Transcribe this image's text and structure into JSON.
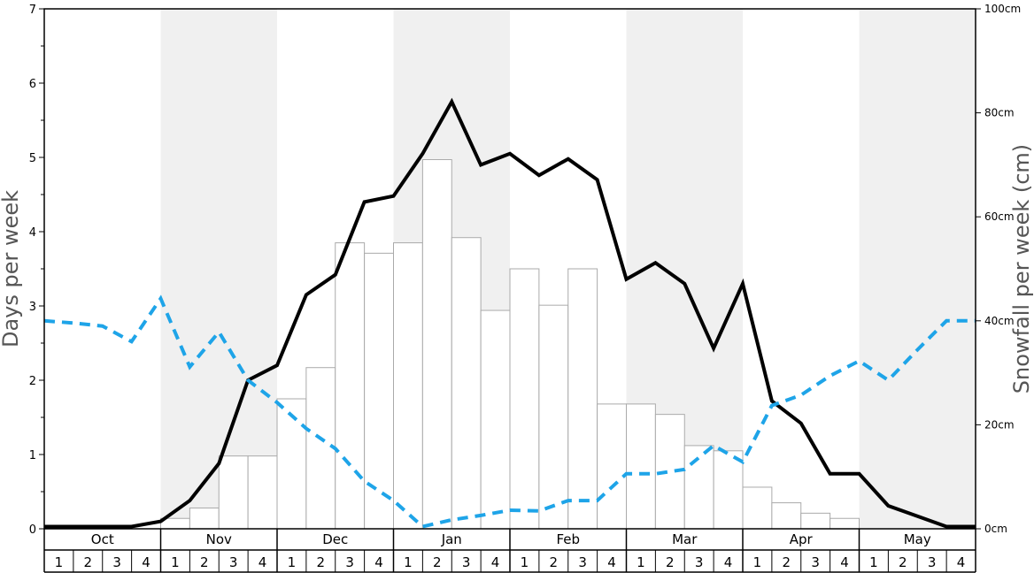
{
  "chart_data": {
    "type": "bar",
    "ylabel": "Days per week",
    "y2label": "Snowfall per week (cm)",
    "ylim": [
      0,
      7
    ],
    "y2lim": [
      0,
      100
    ],
    "y_ticks": [
      "0",
      "1",
      "2",
      "3",
      "4",
      "5",
      "6",
      "7"
    ],
    "y2_ticks": [
      "0cm",
      "20cm",
      "40cm",
      "60cm",
      "80cm",
      "100cm"
    ],
    "months": [
      "Oct",
      "Nov",
      "Dec",
      "Jan",
      "Feb",
      "Mar",
      "Apr",
      "May"
    ],
    "week_labels": [
      "1",
      "2",
      "3",
      "4"
    ],
    "grid": false,
    "colors": {
      "shade": "#f0f0f0",
      "bar_fill": "#ffffff",
      "bar_stroke": "#aaaaaa",
      "snow_days_line": "#000000",
      "dashed_line": "#1ea4e8"
    },
    "series": [
      {
        "type": "bar",
        "axis": "right",
        "values": [
          0,
          0,
          0,
          0,
          2,
          4,
          14,
          14,
          25,
          31,
          55,
          53,
          55,
          71,
          56,
          42,
          50,
          43,
          50,
          24,
          24,
          22,
          16,
          15,
          8,
          5,
          3,
          2,
          0,
          0,
          0,
          0
        ]
      },
      {
        "type": "line",
        "axis": "left",
        "style": "solid",
        "values": [
          0.03,
          0.03,
          0.03,
          0.03,
          0.1,
          0.38,
          0.88,
          2.0,
          2.2,
          3.15,
          3.42,
          4.4,
          4.48,
          5.05,
          5.75,
          4.9,
          5.05,
          4.76,
          4.98,
          4.7,
          3.36,
          3.58,
          3.3,
          2.43,
          3.3,
          1.72,
          1.42,
          0.74,
          0.74,
          0.31,
          0.17,
          0.03,
          0.03
        ]
      },
      {
        "type": "line",
        "axis": "left",
        "style": "dashed",
        "values": [
          2.8,
          2.77,
          2.73,
          2.52,
          3.1,
          2.18,
          2.65,
          2.0,
          1.7,
          1.35,
          1.08,
          0.64,
          0.38,
          0.03,
          0.12,
          0.18,
          0.25,
          0.24,
          0.38,
          0.38,
          0.74,
          0.74,
          0.8,
          1.12,
          0.9,
          1.66,
          1.8,
          2.06,
          2.26,
          2.0,
          2.41,
          2.8,
          2.8
        ]
      }
    ]
  }
}
